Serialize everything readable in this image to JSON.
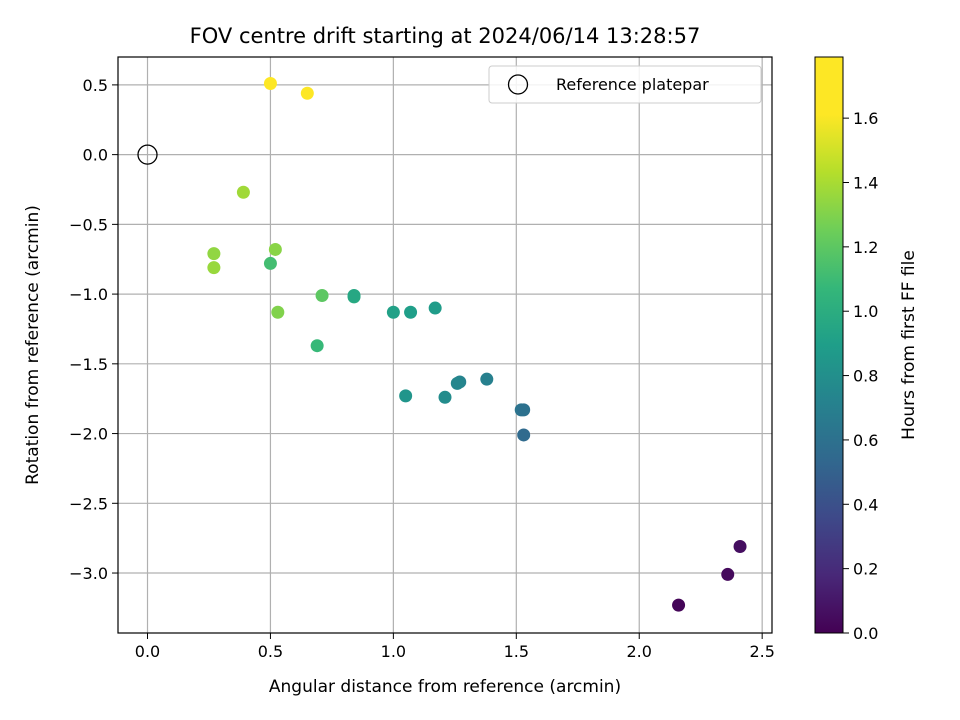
{
  "chart_data": {
    "type": "scatter",
    "title": "FOV centre drift starting at 2024/06/14 13:28:57",
    "xlabel": "Angular distance from reference (arcmin)",
    "ylabel": "Rotation from reference (arcmin)",
    "colorbar_label": "Hours from first FF file",
    "xlim": [
      -0.12,
      2.54
    ],
    "ylim": [
      -3.43,
      0.7
    ],
    "clim": [
      0,
      1.79
    ],
    "colormap": "viridis",
    "grid": true,
    "legend_position": "top-right",
    "x_ticks": [
      0.0,
      0.5,
      1.0,
      1.5,
      2.0,
      2.5
    ],
    "x_tick_labels": [
      "0.0",
      "0.5",
      "1.0",
      "1.5",
      "2.0",
      "2.5"
    ],
    "y_ticks": [
      0.5,
      0.0,
      -0.5,
      -1.0,
      -1.5,
      -2.0,
      -2.5,
      -3.0
    ],
    "y_tick_labels": [
      "0.5",
      "0.0",
      "−0.5",
      "−1.0",
      "−1.5",
      "−2.0",
      "−2.5",
      "−3.0"
    ],
    "cbar_ticks": [
      0.0,
      0.2,
      0.4,
      0.6,
      0.8,
      1.0,
      1.2,
      1.4,
      1.6
    ],
    "cbar_tick_labels": [
      "0.0",
      "0.2",
      "0.4",
      "0.6",
      "0.8",
      "1.0",
      "1.2",
      "1.4",
      "1.6"
    ],
    "reference": {
      "label": "Reference platepar",
      "x": 0.0,
      "y": 0.0
    },
    "points": [
      {
        "x": 0.5,
        "y": 0.51,
        "t": 1.75
      },
      {
        "x": 0.65,
        "y": 0.44,
        "t": 1.72
      },
      {
        "x": 0.39,
        "y": -0.27,
        "t": 1.38
      },
      {
        "x": 0.27,
        "y": -0.71,
        "t": 1.34
      },
      {
        "x": 0.27,
        "y": -0.81,
        "t": 1.36
      },
      {
        "x": 0.52,
        "y": -0.68,
        "t": 1.32
      },
      {
        "x": 0.5,
        "y": -0.78,
        "t": 1.12
      },
      {
        "x": 0.53,
        "y": -1.13,
        "t": 1.3
      },
      {
        "x": 0.71,
        "y": -1.01,
        "t": 1.2
      },
      {
        "x": 0.69,
        "y": -1.37,
        "t": 1.08
      },
      {
        "x": 0.84,
        "y": -1.02,
        "t": 0.98
      },
      {
        "x": 0.84,
        "y": -1.01,
        "t": 0.96
      },
      {
        "x": 1.0,
        "y": -1.13,
        "t": 0.92
      },
      {
        "x": 1.07,
        "y": -1.13,
        "t": 0.9
      },
      {
        "x": 1.17,
        "y": -1.1,
        "t": 0.88
      },
      {
        "x": 1.05,
        "y": -1.73,
        "t": 0.84
      },
      {
        "x": 1.21,
        "y": -1.74,
        "t": 0.78
      },
      {
        "x": 1.27,
        "y": -1.63,
        "t": 0.72
      },
      {
        "x": 1.26,
        "y": -1.64,
        "t": 0.74
      },
      {
        "x": 1.38,
        "y": -1.61,
        "t": 0.7
      },
      {
        "x": 1.52,
        "y": -1.83,
        "t": 0.62
      },
      {
        "x": 1.53,
        "y": -1.83,
        "t": 0.6
      },
      {
        "x": 1.53,
        "y": -2.01,
        "t": 0.56
      },
      {
        "x": 2.41,
        "y": -2.81,
        "t": 0.06
      },
      {
        "x": 2.36,
        "y": -3.01,
        "t": 0.04
      },
      {
        "x": 2.16,
        "y": -3.23,
        "t": 0.02
      }
    ]
  }
}
